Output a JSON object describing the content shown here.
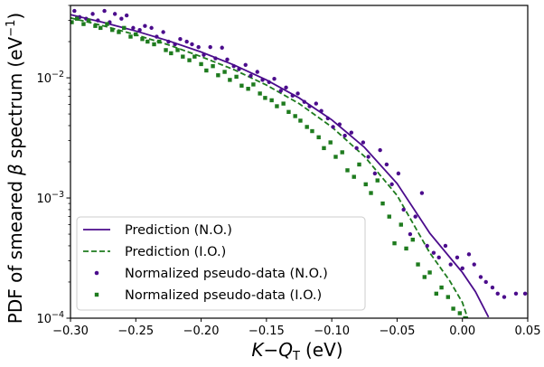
{
  "chart_data": {
    "type": "scatter",
    "xlabel_main": "K",
    "xlabel_q": "Q",
    "xlabel_sub": "T",
    "xlabel_unit": "(eV)",
    "ylabel_text": "PDF of smeared",
    "ylabel_beta": "β",
    "ylabel_rest": "spectrum",
    "ylabel_unit_base": "(eV",
    "ylabel_unit_sup": "−1",
    "ylabel_unit_close": ")",
    "xlim": [
      -0.3,
      0.05
    ],
    "ylim": [
      0.0001,
      0.04
    ],
    "yscale": "log",
    "legend_position": "lower-left",
    "x_ticks": [
      {
        "value": -0.3,
        "label": "−0.30"
      },
      {
        "value": -0.25,
        "label": "−0.25"
      },
      {
        "value": -0.2,
        "label": "−0.20"
      },
      {
        "value": -0.15,
        "label": "−0.15"
      },
      {
        "value": -0.1,
        "label": "−0.10"
      },
      {
        "value": -0.05,
        "label": "−0.05"
      },
      {
        "value": 0.0,
        "label": "0.00"
      },
      {
        "value": 0.05,
        "label": "0.05"
      }
    ],
    "y_ticks": [
      {
        "value": 0.0001,
        "base": "10",
        "exp": "−4"
      },
      {
        "value": 0.001,
        "base": "10",
        "exp": "−3"
      },
      {
        "value": 0.01,
        "base": "10",
        "exp": "−2"
      }
    ],
    "series": [
      {
        "name": "Prediction (N.O.)",
        "kind": "line",
        "style": "solid",
        "color": "#4b0c8c",
        "x": [
          -0.3,
          -0.275,
          -0.25,
          -0.225,
          -0.2,
          -0.175,
          -0.15,
          -0.125,
          -0.1,
          -0.075,
          -0.05,
          -0.025,
          0.0,
          0.01,
          0.02
        ],
        "y": [
          0.0335,
          0.0289,
          0.0245,
          0.0203,
          0.0164,
          0.0128,
          0.0096,
          0.0068,
          0.00447,
          0.00264,
          0.00132,
          0.00051,
          0.00024,
          0.000166,
          0.000102
        ]
      },
      {
        "name": "Prediction (I.O.)",
        "kind": "line",
        "style": "dashed",
        "color": "#1e7b1e",
        "x": [
          -0.3,
          -0.275,
          -0.25,
          -0.225,
          -0.2,
          -0.175,
          -0.15,
          -0.125,
          -0.1,
          -0.075,
          -0.05,
          -0.025,
          -0.01,
          0.0,
          0.004
        ],
        "y": [
          0.0315,
          0.0271,
          0.0228,
          0.0188,
          0.015,
          0.0117,
          0.0087,
          0.0061,
          0.0039,
          0.00222,
          0.00105,
          0.00035,
          0.000207,
          0.000135,
          0.0001
        ]
      },
      {
        "name": "Normalized pseudo-data (N.O.)",
        "kind": "points",
        "marker": "circle",
        "color": "#4b0c8c",
        "x": [
          -0.297,
          -0.293,
          -0.288,
          -0.283,
          -0.279,
          -0.274,
          -0.27,
          -0.266,
          -0.261,
          -0.257,
          -0.252,
          -0.247,
          -0.243,
          -0.238,
          -0.234,
          -0.229,
          -0.225,
          -0.22,
          -0.216,
          -0.211,
          -0.207,
          -0.202,
          -0.198,
          -0.193,
          -0.189,
          -0.184,
          -0.18,
          -0.175,
          -0.171,
          -0.166,
          -0.162,
          -0.157,
          -0.153,
          -0.148,
          -0.144,
          -0.139,
          -0.135,
          -0.13,
          -0.126,
          -0.121,
          -0.117,
          -0.112,
          -0.108,
          -0.103,
          -0.099,
          -0.094,
          -0.09,
          -0.085,
          -0.081,
          -0.076,
          -0.072,
          -0.067,
          -0.063,
          -0.058,
          -0.054,
          -0.049,
          -0.045,
          -0.04,
          -0.036,
          -0.031,
          -0.027,
          -0.022,
          -0.018,
          -0.013,
          -0.009,
          -0.004,
          0.0,
          0.005,
          0.009,
          0.014,
          0.018,
          0.023,
          0.027,
          0.032,
          0.041,
          0.048
        ],
        "y": [
          0.036,
          0.032,
          0.031,
          0.034,
          0.03,
          0.036,
          0.029,
          0.034,
          0.031,
          0.033,
          0.026,
          0.025,
          0.027,
          0.026,
          0.022,
          0.024,
          0.02,
          0.019,
          0.021,
          0.02,
          0.019,
          0.018,
          0.0155,
          0.018,
          0.0145,
          0.0178,
          0.0142,
          0.0125,
          0.0118,
          0.0128,
          0.0104,
          0.0112,
          0.0096,
          0.0092,
          0.0098,
          0.0078,
          0.0083,
          0.0071,
          0.0074,
          0.0063,
          0.0058,
          0.0061,
          0.0053,
          0.0046,
          0.0039,
          0.0041,
          0.0033,
          0.0035,
          0.0026,
          0.0029,
          0.0022,
          0.0016,
          0.0025,
          0.0019,
          0.0013,
          0.0016,
          0.0008,
          0.0005,
          0.0007,
          0.0011,
          0.0004,
          0.00035,
          0.00032,
          0.0004,
          0.00028,
          0.00032,
          0.00026,
          0.00034,
          0.00028,
          0.00022,
          0.0002,
          0.00018,
          0.00016,
          0.00015,
          0.00016,
          0.00016
        ]
      },
      {
        "name": "Normalized pseudo-data (I.O.)",
        "kind": "points",
        "marker": "square",
        "color": "#1e7b1e",
        "x": [
          -0.299,
          -0.295,
          -0.29,
          -0.286,
          -0.281,
          -0.277,
          -0.272,
          -0.268,
          -0.263,
          -0.259,
          -0.254,
          -0.25,
          -0.245,
          -0.241,
          -0.236,
          -0.232,
          -0.227,
          -0.223,
          -0.218,
          -0.214,
          -0.209,
          -0.205,
          -0.2,
          -0.196,
          -0.191,
          -0.187,
          -0.182,
          -0.178,
          -0.173,
          -0.169,
          -0.164,
          -0.16,
          -0.155,
          -0.151,
          -0.146,
          -0.142,
          -0.137,
          -0.133,
          -0.128,
          -0.124,
          -0.119,
          -0.115,
          -0.11,
          -0.106,
          -0.101,
          -0.097,
          -0.092,
          -0.088,
          -0.083,
          -0.079,
          -0.074,
          -0.07,
          -0.065,
          -0.061,
          -0.056,
          -0.052,
          -0.047,
          -0.043,
          -0.038,
          -0.034,
          -0.029,
          -0.025,
          -0.02,
          -0.016,
          -0.011,
          -0.007,
          -0.002,
          0.002
        ],
        "y": [
          0.029,
          0.031,
          0.028,
          0.03,
          0.027,
          0.026,
          0.028,
          0.025,
          0.024,
          0.026,
          0.022,
          0.023,
          0.021,
          0.02,
          0.019,
          0.02,
          0.017,
          0.016,
          0.017,
          0.015,
          0.014,
          0.015,
          0.013,
          0.0115,
          0.0125,
          0.0105,
          0.0112,
          0.0096,
          0.0102,
          0.0086,
          0.0081,
          0.0088,
          0.0074,
          0.0068,
          0.0065,
          0.0058,
          0.0061,
          0.0052,
          0.0048,
          0.0044,
          0.0039,
          0.0036,
          0.0032,
          0.0026,
          0.0029,
          0.0022,
          0.0024,
          0.0017,
          0.0015,
          0.0019,
          0.0013,
          0.0011,
          0.0014,
          0.0009,
          0.0007,
          0.00042,
          0.0006,
          0.00038,
          0.00045,
          0.00028,
          0.00022,
          0.00024,
          0.00016,
          0.00018,
          0.00015,
          0.00012,
          0.00011,
          0.0001
        ]
      }
    ]
  }
}
